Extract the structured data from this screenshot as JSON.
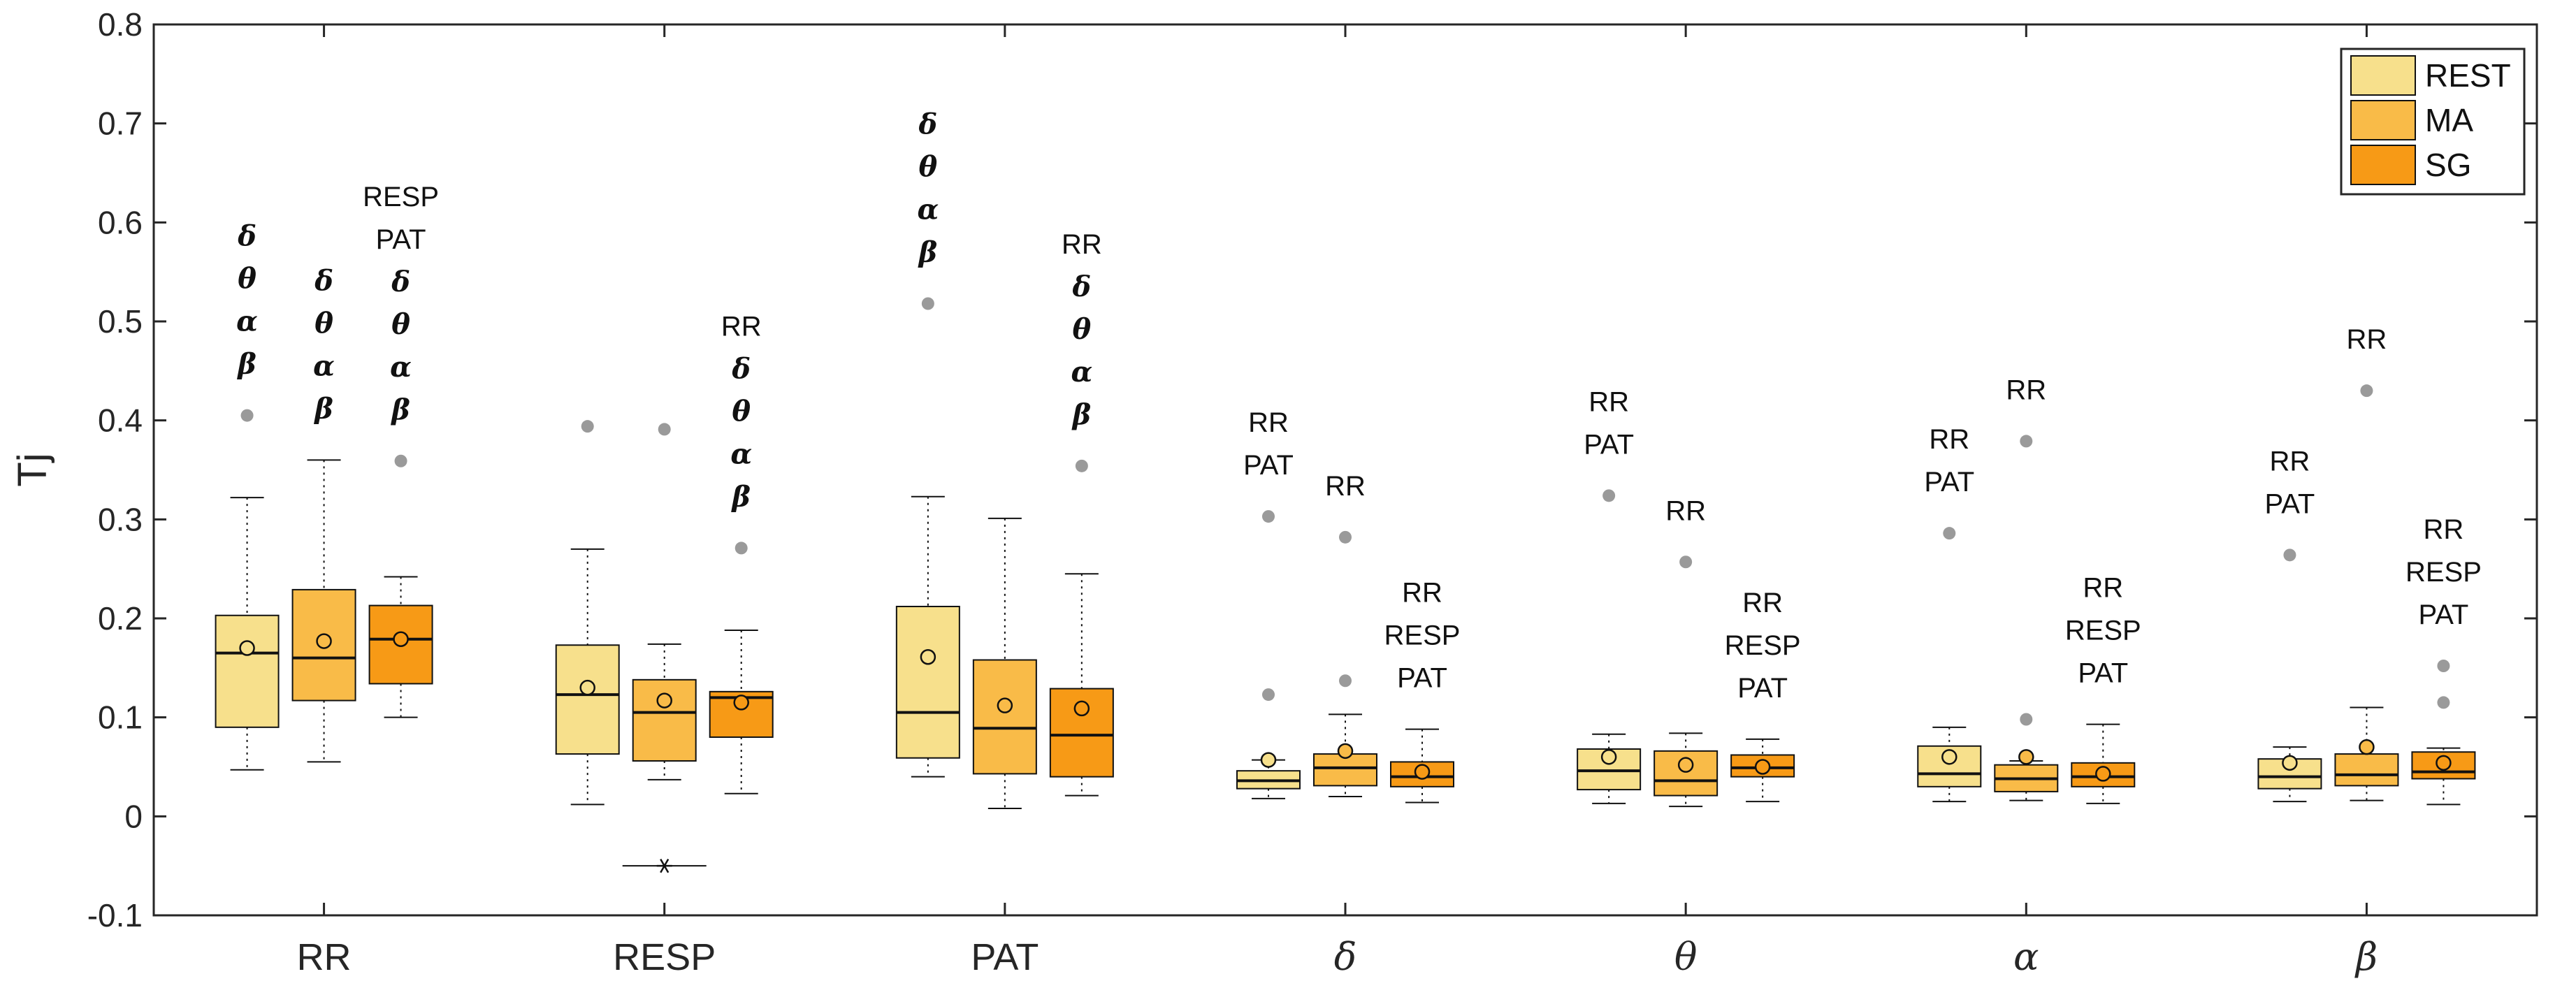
{
  "chart_data": {
    "type": "boxplot",
    "title": "",
    "xlabel": "",
    "ylabel": "Tj",
    "ylim": [
      -0.1,
      0.8
    ],
    "yticks": [
      "-0.1",
      "0",
      "0.1",
      "0.2",
      "0.3",
      "0.4",
      "0.5",
      "0.6",
      "0.7",
      "0.8"
    ],
    "ytick_values": [
      -0.1,
      0,
      0.1,
      0.2,
      0.3,
      0.4,
      0.5,
      0.6,
      0.7,
      0.8
    ],
    "categories": [
      "RR",
      "RESP",
      "PAT",
      "δ",
      "θ",
      "α",
      "β"
    ],
    "legend": {
      "position": "top-right",
      "entries": [
        {
          "name": "REST",
          "color": "#F7E08C"
        },
        {
          "name": "MA",
          "color": "#F9BB48"
        },
        {
          "name": "SG",
          "color": "#F79A16"
        }
      ]
    },
    "series": [
      {
        "name": "REST",
        "color": "#F7E08C",
        "boxes": [
          {
            "q1": 0.09,
            "median": 0.165,
            "q3": 0.203,
            "whisker_low": 0.047,
            "whisker_high": 0.322,
            "mean": 0.17,
            "outliers": [
              0.405
            ],
            "annotation": [
              "δ",
              "θ",
              "α",
              "β"
            ]
          },
          {
            "q1": 0.063,
            "median": 0.123,
            "q3": 0.173,
            "whisker_low": 0.012,
            "whisker_high": 0.27,
            "mean": 0.13,
            "outliers": [
              0.394
            ],
            "annotation": []
          },
          {
            "q1": 0.059,
            "median": 0.105,
            "q3": 0.212,
            "whisker_low": 0.04,
            "whisker_high": 0.323,
            "mean": 0.161,
            "outliers": [
              0.518
            ],
            "annotation": [
              "δ",
              "θ",
              "α",
              "β"
            ]
          },
          {
            "q1": 0.028,
            "median": 0.036,
            "q3": 0.046,
            "whisker_low": 0.018,
            "whisker_high": 0.057,
            "mean": 0.057,
            "outliers": [
              0.123,
              0.303
            ],
            "annotation": [
              "RR",
              "PAT"
            ]
          },
          {
            "q1": 0.027,
            "median": 0.046,
            "q3": 0.068,
            "whisker_low": 0.013,
            "whisker_high": 0.083,
            "mean": 0.06,
            "outliers": [
              0.324
            ],
            "annotation": [
              "RR",
              "PAT"
            ]
          },
          {
            "q1": 0.03,
            "median": 0.043,
            "q3": 0.071,
            "whisker_low": 0.015,
            "whisker_high": 0.09,
            "mean": 0.06,
            "outliers": [
              0.286
            ],
            "annotation": [
              "RR",
              "PAT"
            ]
          },
          {
            "q1": 0.028,
            "median": 0.04,
            "q3": 0.058,
            "whisker_low": 0.015,
            "whisker_high": 0.07,
            "mean": 0.054,
            "outliers": [
              0.264
            ],
            "annotation": [
              "RR",
              "PAT"
            ]
          }
        ]
      },
      {
        "name": "MA",
        "color": "#F9BB48",
        "boxes": [
          {
            "q1": 0.117,
            "median": 0.16,
            "q3": 0.229,
            "whisker_low": 0.055,
            "whisker_high": 0.36,
            "mean": 0.177,
            "outliers": [],
            "annotation": [
              "δ",
              "θ",
              "α",
              "β"
            ]
          },
          {
            "q1": 0.056,
            "median": 0.105,
            "q3": 0.138,
            "whisker_low": 0.037,
            "whisker_high": 0.174,
            "mean": 0.117,
            "outliers": [
              0.391,
              -0.05
            ],
            "annotation": []
          },
          {
            "q1": 0.043,
            "median": 0.089,
            "q3": 0.158,
            "whisker_low": 0.008,
            "whisker_high": 0.301,
            "mean": 0.112,
            "outliers": [],
            "annotation": []
          },
          {
            "q1": 0.031,
            "median": 0.049,
            "q3": 0.063,
            "whisker_low": 0.02,
            "whisker_high": 0.103,
            "mean": 0.066,
            "outliers": [
              0.137,
              0.282
            ],
            "annotation": [
              "RR"
            ]
          },
          {
            "q1": 0.021,
            "median": 0.036,
            "q3": 0.066,
            "whisker_low": 0.01,
            "whisker_high": 0.084,
            "mean": 0.052,
            "outliers": [
              0.257
            ],
            "annotation": [
              "RR"
            ]
          },
          {
            "q1": 0.025,
            "median": 0.038,
            "q3": 0.052,
            "whisker_low": 0.016,
            "whisker_high": 0.056,
            "mean": 0.06,
            "outliers": [
              0.098,
              0.379
            ],
            "annotation": [
              "RR"
            ]
          },
          {
            "q1": 0.031,
            "median": 0.042,
            "q3": 0.063,
            "whisker_low": 0.016,
            "whisker_high": 0.11,
            "mean": 0.07,
            "outliers": [
              0.43
            ],
            "annotation": [
              "RR"
            ]
          }
        ]
      },
      {
        "name": "SG",
        "color": "#F79A16",
        "boxes": [
          {
            "q1": 0.134,
            "median": 0.179,
            "q3": 0.213,
            "whisker_low": 0.1,
            "whisker_high": 0.242,
            "mean": 0.179,
            "outliers": [
              0.359
            ],
            "annotation": [
              "RESP",
              "PAT",
              "δ",
              "θ",
              "α",
              "β"
            ]
          },
          {
            "q1": 0.08,
            "median": 0.12,
            "q3": 0.126,
            "whisker_low": 0.023,
            "whisker_high": 0.188,
            "mean": 0.115,
            "outliers": [
              0.271
            ],
            "annotation": [
              "RR",
              "δ",
              "θ",
              "α",
              "β"
            ]
          },
          {
            "q1": 0.04,
            "median": 0.082,
            "q3": 0.129,
            "whisker_low": 0.021,
            "whisker_high": 0.245,
            "mean": 0.109,
            "outliers": [
              0.354
            ],
            "annotation": [
              "RR",
              "δ",
              "θ",
              "α",
              "β"
            ]
          },
          {
            "q1": 0.03,
            "median": 0.04,
            "q3": 0.055,
            "whisker_low": 0.014,
            "whisker_high": 0.088,
            "mean": 0.045,
            "outliers": [],
            "annotation": [
              "RR",
              "RESP",
              "PAT"
            ]
          },
          {
            "q1": 0.04,
            "median": 0.049,
            "q3": 0.062,
            "whisker_low": 0.015,
            "whisker_high": 0.078,
            "mean": 0.05,
            "outliers": [],
            "annotation": [
              "RR",
              "RESP",
              "PAT"
            ]
          },
          {
            "q1": 0.03,
            "median": 0.04,
            "q3": 0.054,
            "whisker_low": 0.013,
            "whisker_high": 0.093,
            "mean": 0.043,
            "outliers": [],
            "annotation": [
              "RR",
              "RESP",
              "PAT"
            ]
          },
          {
            "q1": 0.038,
            "median": 0.045,
            "q3": 0.065,
            "whisker_low": 0.012,
            "whisker_high": 0.069,
            "mean": 0.054,
            "outliers": [
              0.115,
              0.152
            ],
            "annotation": [
              "RR",
              "RESP",
              "PAT"
            ]
          }
        ]
      }
    ],
    "special_markers": [
      {
        "series": "MA",
        "category": "RESP",
        "value": -0.05,
        "marker": "asterisk"
      }
    ],
    "colors": {
      "outlier": "#9A9A9A",
      "axis": "#262626",
      "mean_marker_edge": "#111111"
    }
  }
}
